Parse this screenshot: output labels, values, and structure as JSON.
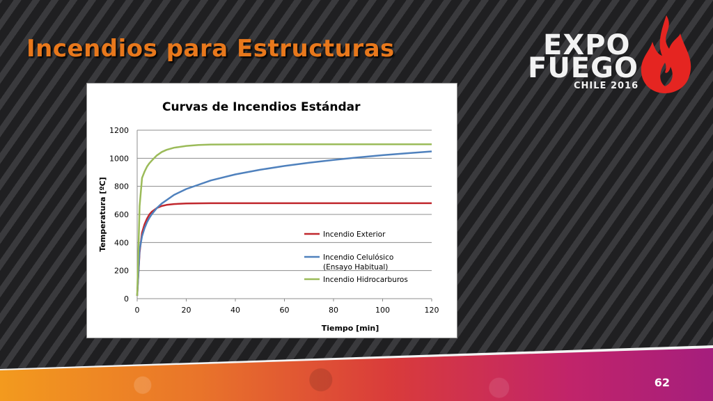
{
  "slide": {
    "title": "Incendios para Estructuras",
    "page_number": "62"
  },
  "logo": {
    "line1": "EXPO",
    "line2": "FUEGO",
    "line3": "CHILE 2016",
    "flame_color": "#e52521"
  },
  "chart_data": {
    "type": "line",
    "title": "Curvas de Incendios Estándar",
    "xlabel": "Tiempo [min]",
    "ylabel": "Temperatura [ºC]",
    "xlim": [
      0,
      120
    ],
    "ylim": [
      0,
      1200
    ],
    "xticks": [
      0,
      20,
      40,
      60,
      80,
      100,
      120
    ],
    "yticks": [
      0,
      200,
      400,
      600,
      800,
      1000,
      1200
    ],
    "grid": "horizontal",
    "legend_position": "right-inside",
    "series": [
      {
        "name": "Incendio Exterior",
        "color": "#c0272d",
        "x": [
          0,
          1,
          2,
          3,
          4,
          5,
          6,
          8,
          10,
          12,
          15,
          20,
          30,
          60,
          90,
          120
        ],
        "y": [
          20,
          330,
          470,
          530,
          570,
          600,
          620,
          645,
          660,
          668,
          674,
          678,
          680,
          680,
          680,
          680
        ]
      },
      {
        "name": "Incendio Celulósico",
        "name_line2": "(Ensayo Habitual)",
        "color": "#4f81bd",
        "x": [
          0,
          1,
          2,
          3,
          4,
          5,
          6,
          8,
          10,
          15,
          20,
          30,
          40,
          50,
          60,
          70,
          80,
          90,
          100,
          110,
          120
        ],
        "y": [
          20,
          349,
          445,
          502,
          544,
          576,
          603,
          645,
          678,
          739,
          781,
          842,
          885,
          918,
          945,
          968,
          988,
          1006,
          1022,
          1036,
          1049
        ]
      },
      {
        "name": "Incendio Hidrocarburos",
        "color": "#9bbb59",
        "x": [
          0,
          1,
          2,
          3,
          4,
          5,
          6,
          8,
          10,
          12,
          15,
          20,
          25,
          30,
          60,
          90,
          120
        ],
        "y": [
          20,
          660,
          860,
          905,
          940,
          965,
          985,
          1020,
          1045,
          1060,
          1075,
          1088,
          1095,
          1098,
          1100,
          1100,
          1100
        ]
      }
    ]
  }
}
